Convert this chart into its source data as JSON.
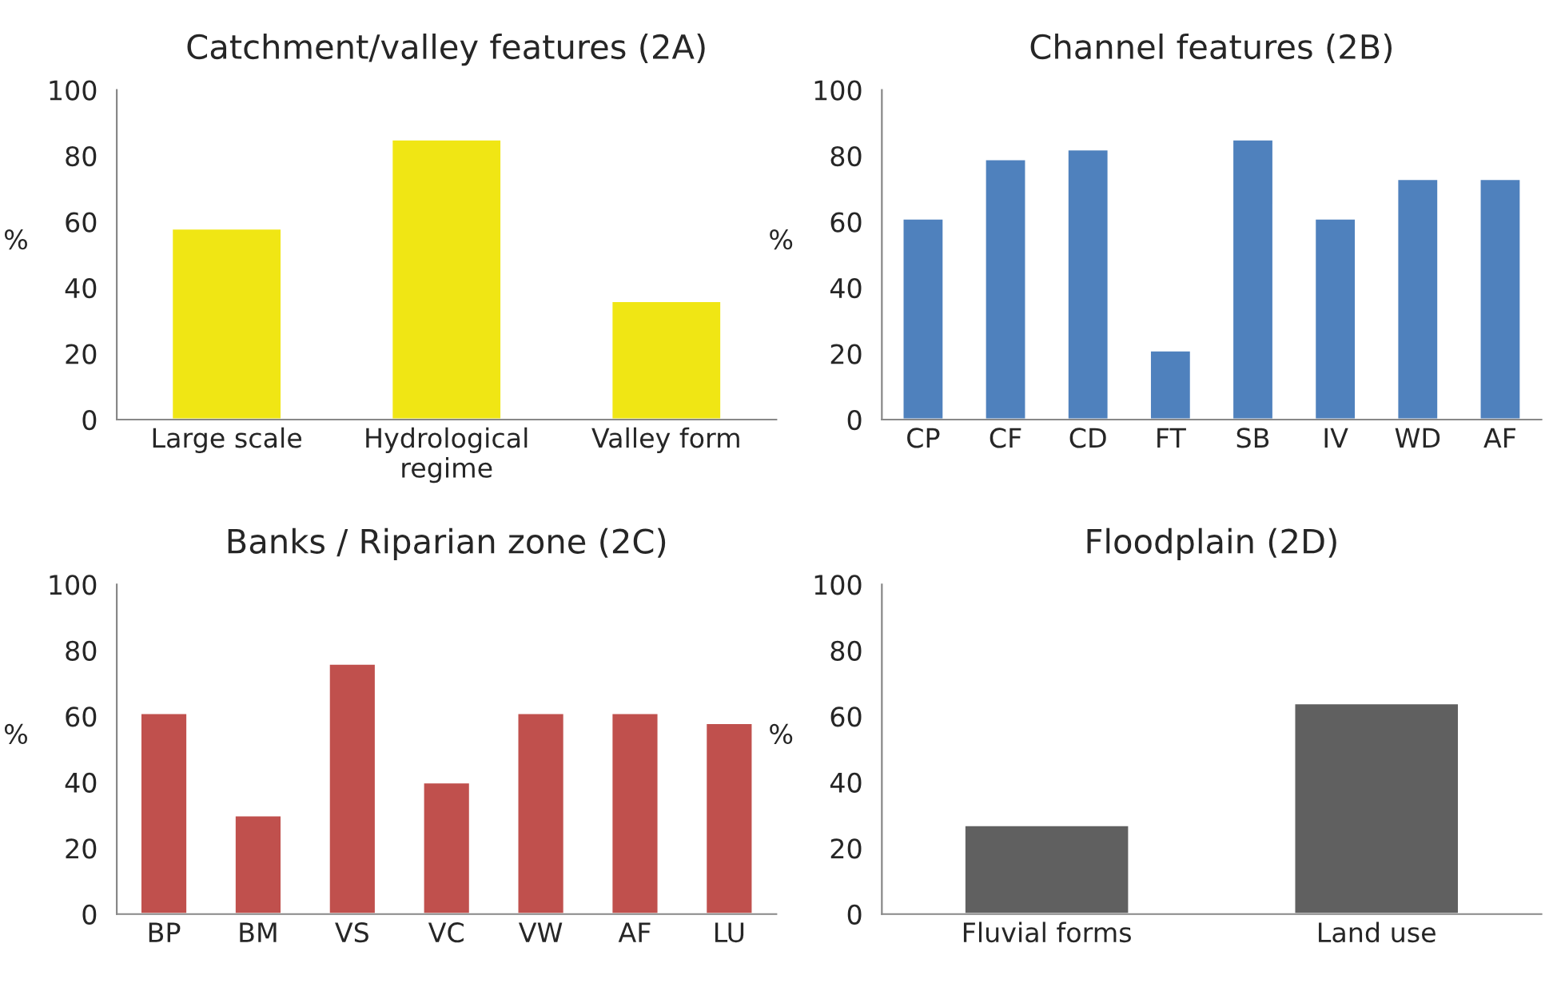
{
  "chart_data": [
    {
      "type": "bar",
      "title": "Catchment/valley features (2A)",
      "ylabel": "%",
      "categories": [
        "Large scale",
        "Hydrological\nregime",
        "Valley form"
      ],
      "values": [
        58,
        85,
        36
      ],
      "color": "#f0e614",
      "ylim": [
        0,
        100
      ],
      "yticks": [
        0,
        20,
        40,
        60,
        80,
        100
      ],
      "grid": false,
      "legend": false
    },
    {
      "type": "bar",
      "title": "Channel features (2B)",
      "ylabel": "%",
      "categories": [
        "CP",
        "CF",
        "CD",
        "FT",
        "SB",
        "IV",
        "WD",
        "AF"
      ],
      "values": [
        61,
        79,
        82,
        21,
        85,
        61,
        73,
        73
      ],
      "color": "#4f81bd",
      "ylim": [
        0,
        100
      ],
      "yticks": [
        0,
        20,
        40,
        60,
        80,
        100
      ],
      "grid": false,
      "legend": false
    },
    {
      "type": "bar",
      "title": "Banks / Riparian zone (2C)",
      "ylabel": "%",
      "categories": [
        "BP",
        "BM",
        "VS",
        "VC",
        "VW",
        "AF",
        "LU"
      ],
      "values": [
        61,
        30,
        76,
        40,
        61,
        61,
        58
      ],
      "color": "#c0504d",
      "ylim": [
        0,
        100
      ],
      "yticks": [
        0,
        20,
        40,
        60,
        80,
        100
      ],
      "grid": false,
      "legend": false
    },
    {
      "type": "bar",
      "title": "Floodplain (2D)",
      "ylabel": "%",
      "categories": [
        "Fluvial forms",
        "Land use"
      ],
      "values": [
        27,
        64
      ],
      "color": "#606060",
      "ylim": [
        0,
        100
      ],
      "yticks": [
        0,
        20,
        40,
        60,
        80,
        100
      ],
      "grid": false,
      "legend": false
    }
  ]
}
